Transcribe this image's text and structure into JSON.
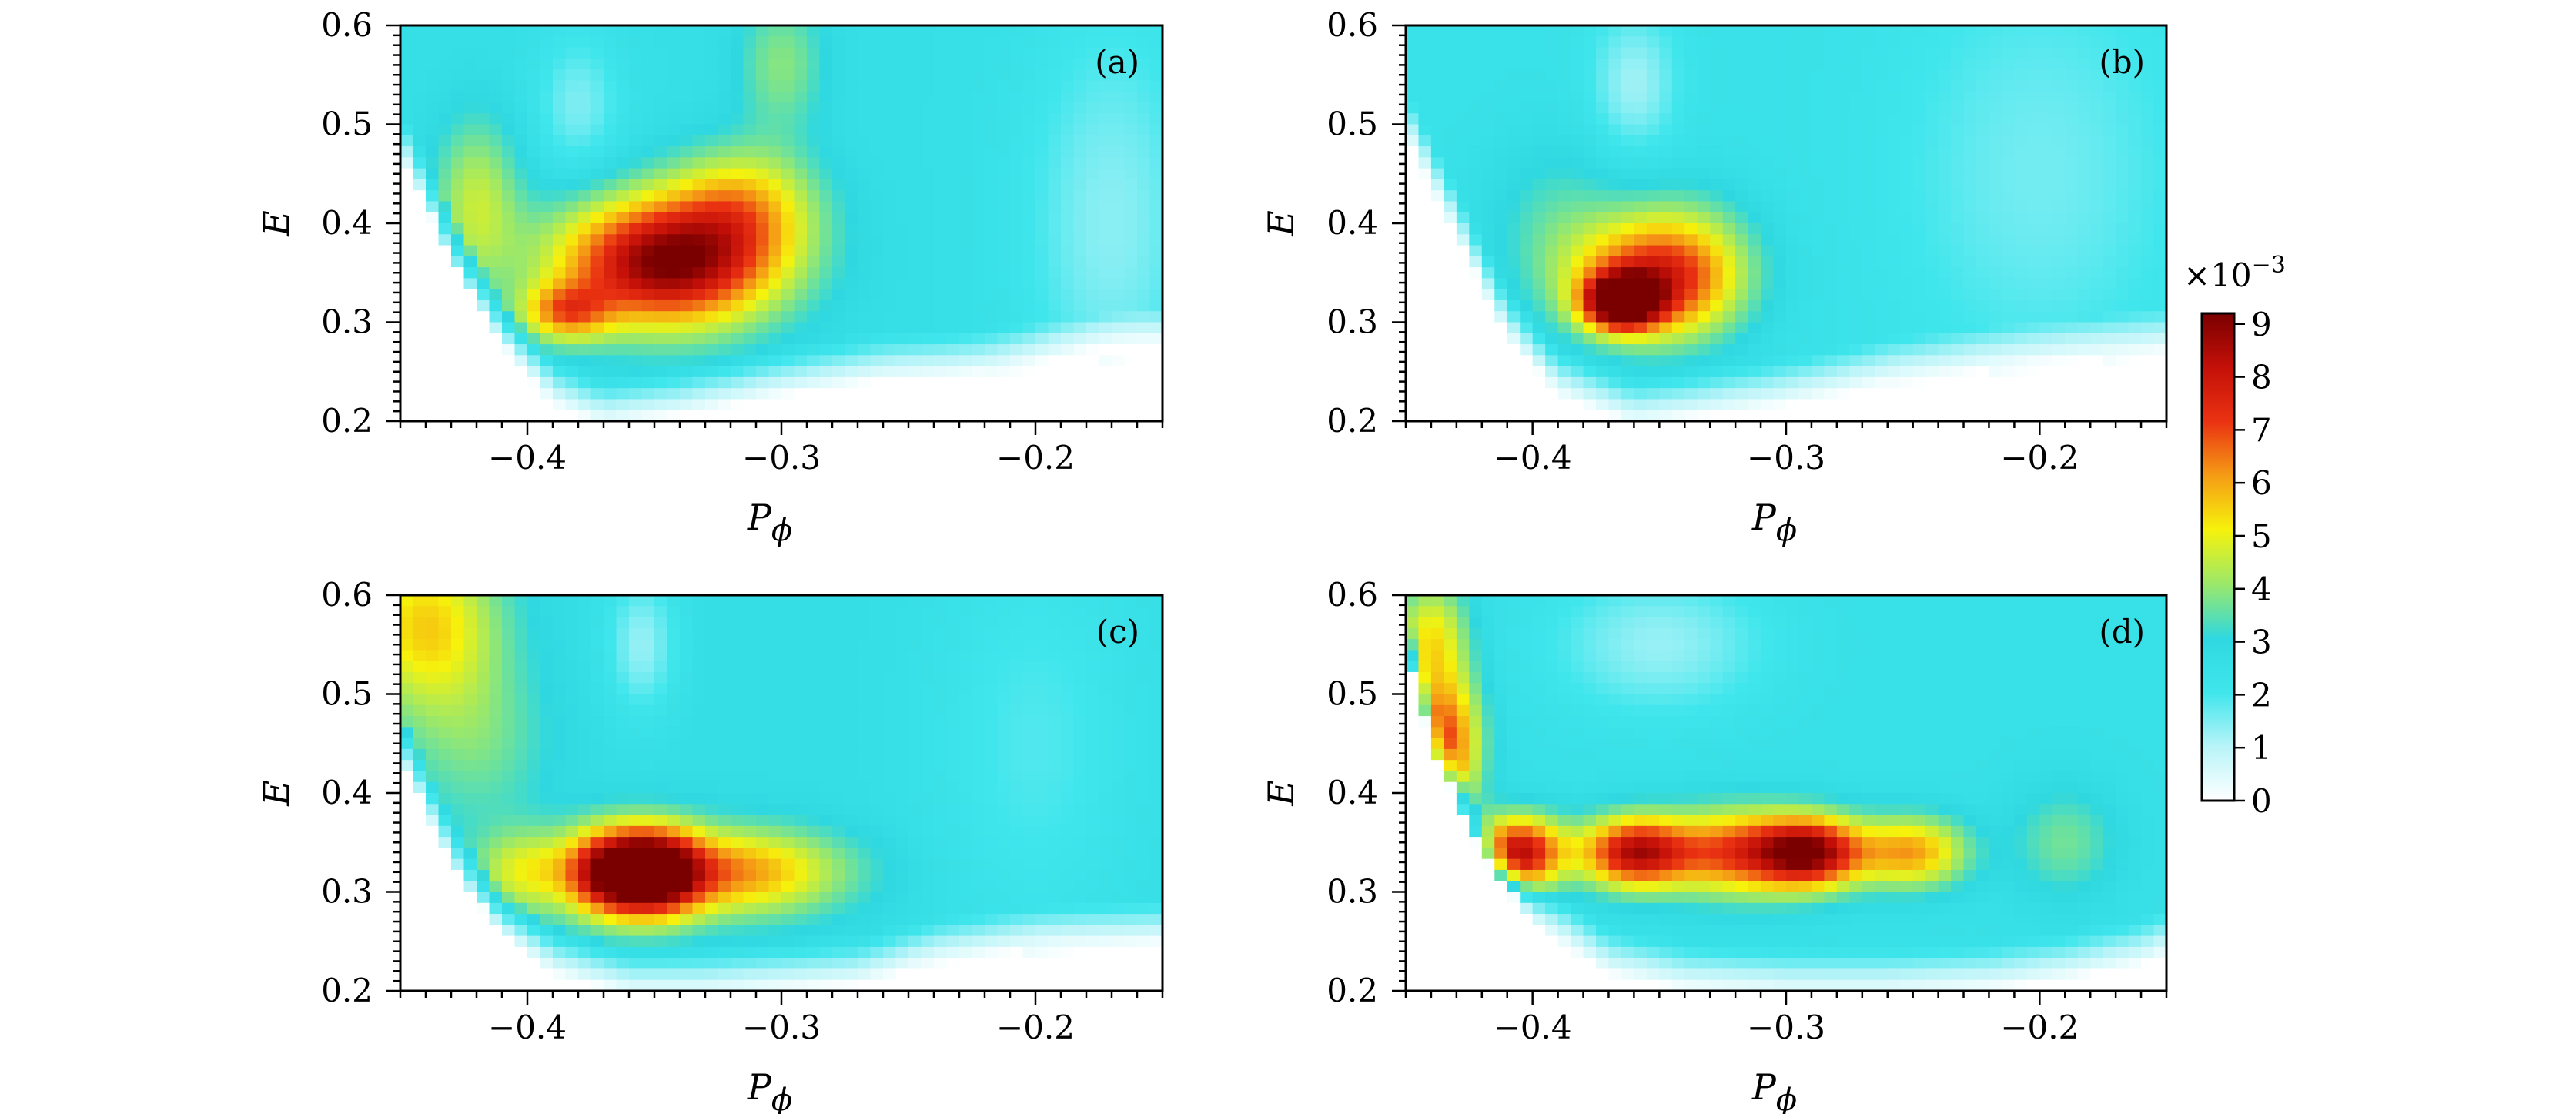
{
  "chart_data": [
    {
      "type": "heatmap",
      "panel_label": "(a)",
      "xlabel": "P",
      "xlabel_sub": "ϕ",
      "ylabel": "E",
      "xlim": [
        -0.45,
        -0.15
      ],
      "ylim": [
        0.2,
        0.6
      ],
      "x_ticks": [
        -0.4,
        -0.3,
        -0.2
      ],
      "x_tick_labels": [
        "−0.4",
        "−0.3",
        "−0.2"
      ],
      "y_ticks": [
        0.2,
        0.3,
        0.4,
        0.5,
        0.6
      ],
      "y_tick_labels": [
        "0.2",
        "0.3",
        "0.4",
        "0.5",
        "0.6"
      ],
      "floor": 2.6,
      "boundary": [
        [
          -0.45,
          0.48
        ],
        [
          -0.43,
          0.38
        ],
        [
          -0.41,
          0.29
        ],
        [
          -0.39,
          0.23
        ],
        [
          -0.37,
          0.21
        ],
        [
          -0.34,
          0.22
        ],
        [
          -0.3,
          0.24
        ],
        [
          -0.26,
          0.255
        ],
        [
          -0.22,
          0.26
        ],
        [
          -0.18,
          0.27
        ],
        [
          -0.15,
          0.28
        ]
      ],
      "peaks": [
        {
          "x": -0.345,
          "y": 0.36,
          "amp": 6.6,
          "sx": 0.03,
          "sy": 0.045
        },
        {
          "x": -0.385,
          "y": 0.31,
          "amp": 3.2,
          "sx": 0.012,
          "sy": 0.02
        },
        {
          "x": -0.315,
          "y": 0.42,
          "amp": 2.5,
          "sx": 0.02,
          "sy": 0.04
        },
        {
          "x": -0.42,
          "y": 0.42,
          "amp": 1.9,
          "sx": 0.012,
          "sy": 0.06
        },
        {
          "x": -0.3,
          "y": 0.56,
          "amp": 1.3,
          "sx": 0.012,
          "sy": 0.05
        },
        {
          "x": -0.38,
          "y": 0.52,
          "amp": -1.1,
          "sx": 0.012,
          "sy": 0.05
        },
        {
          "x": -0.17,
          "y": 0.4,
          "amp": -1.2,
          "sx": 0.025,
          "sy": 0.15
        }
      ]
    },
    {
      "type": "heatmap",
      "panel_label": "(b)",
      "xlabel": "P",
      "xlabel_sub": "ϕ",
      "ylabel": "E",
      "xlim": [
        -0.45,
        -0.15
      ],
      "ylim": [
        0.2,
        0.6
      ],
      "x_ticks": [
        -0.4,
        -0.3,
        -0.2
      ],
      "x_tick_labels": [
        "−0.4",
        "−0.3",
        "−0.2"
      ],
      "y_ticks": [
        0.2,
        0.3,
        0.4,
        0.5,
        0.6
      ],
      "y_tick_labels": [
        "0.2",
        "0.3",
        "0.4",
        "0.5",
        "0.6"
      ],
      "floor": 2.4,
      "boundary": [
        [
          -0.45,
          0.5
        ],
        [
          -0.43,
          0.4
        ],
        [
          -0.41,
          0.3
        ],
        [
          -0.39,
          0.24
        ],
        [
          -0.36,
          0.21
        ],
        [
          -0.33,
          0.22
        ],
        [
          -0.3,
          0.23
        ],
        [
          -0.26,
          0.25
        ],
        [
          -0.22,
          0.26
        ],
        [
          -0.18,
          0.27
        ],
        [
          -0.15,
          0.28
        ]
      ],
      "peaks": [
        {
          "x": -0.365,
          "y": 0.32,
          "amp": 6.8,
          "sx": 0.01,
          "sy": 0.018
        },
        {
          "x": -0.355,
          "y": 0.34,
          "amp": 4.0,
          "sx": 0.022,
          "sy": 0.04
        },
        {
          "x": -0.34,
          "y": 0.36,
          "amp": 2.0,
          "sx": 0.02,
          "sy": 0.05
        },
        {
          "x": -0.39,
          "y": 0.4,
          "amp": 1.0,
          "sx": 0.02,
          "sy": 0.06
        },
        {
          "x": -0.36,
          "y": 0.54,
          "amp": -1.2,
          "sx": 0.012,
          "sy": 0.05
        },
        {
          "x": -0.2,
          "y": 0.45,
          "amp": -0.8,
          "sx": 0.04,
          "sy": 0.15
        }
      ]
    },
    {
      "type": "heatmap",
      "panel_label": "(c)",
      "xlabel": "P",
      "xlabel_sub": "ϕ",
      "ylabel": "E",
      "xlim": [
        -0.45,
        -0.15
      ],
      "ylim": [
        0.2,
        0.6
      ],
      "x_ticks": [
        -0.4,
        -0.3,
        -0.2
      ],
      "x_tick_labels": [
        "−0.4",
        "−0.3",
        "−0.2"
      ],
      "y_ticks": [
        0.2,
        0.3,
        0.4,
        0.5,
        0.6
      ],
      "y_tick_labels": [
        "0.2",
        "0.3",
        "0.4",
        "0.5",
        "0.6"
      ],
      "floor": 2.7,
      "boundary": [
        [
          -0.45,
          0.45
        ],
        [
          -0.43,
          0.34
        ],
        [
          -0.41,
          0.27
        ],
        [
          -0.39,
          0.23
        ],
        [
          -0.36,
          0.21
        ],
        [
          -0.33,
          0.21
        ],
        [
          -0.3,
          0.215
        ],
        [
          -0.27,
          0.22
        ],
        [
          -0.24,
          0.24
        ],
        [
          -0.2,
          0.25
        ],
        [
          -0.15,
          0.26
        ]
      ],
      "peaks": [
        {
          "x": -0.367,
          "y": 0.32,
          "amp": 5.8,
          "sx": 0.012,
          "sy": 0.03
        },
        {
          "x": -0.348,
          "y": 0.32,
          "amp": 5.8,
          "sx": 0.012,
          "sy": 0.03
        },
        {
          "x": -0.32,
          "y": 0.32,
          "amp": 3.6,
          "sx": 0.03,
          "sy": 0.03
        },
        {
          "x": -0.4,
          "y": 0.32,
          "amp": 2.2,
          "sx": 0.015,
          "sy": 0.03
        },
        {
          "x": -0.44,
          "y": 0.57,
          "amp": 2.8,
          "sx": 0.02,
          "sy": 0.06
        },
        {
          "x": -0.42,
          "y": 0.45,
          "amp": 1.0,
          "sx": 0.02,
          "sy": 0.06
        },
        {
          "x": -0.355,
          "y": 0.55,
          "amp": -1.4,
          "sx": 0.01,
          "sy": 0.05
        },
        {
          "x": -0.2,
          "y": 0.45,
          "amp": -0.8,
          "sx": 0.03,
          "sy": 0.15
        }
      ]
    },
    {
      "type": "heatmap",
      "panel_label": "(d)",
      "xlabel": "P",
      "xlabel_sub": "ϕ",
      "ylabel": "E",
      "xlim": [
        -0.45,
        -0.15
      ],
      "ylim": [
        0.2,
        0.6
      ],
      "x_ticks": [
        -0.4,
        -0.3,
        -0.2
      ],
      "x_tick_labels": [
        "−0.4",
        "−0.3",
        "−0.2"
      ],
      "y_ticks": [
        0.2,
        0.3,
        0.4,
        0.5,
        0.6
      ],
      "y_tick_labels": [
        "0.2",
        "0.3",
        "0.4",
        "0.5",
        "0.6"
      ],
      "floor": 2.5,
      "boundary": [
        [
          -0.45,
          0.56
        ],
        [
          -0.44,
          0.46
        ],
        [
          -0.42,
          0.35
        ],
        [
          -0.4,
          0.28
        ],
        [
          -0.37,
          0.23
        ],
        [
          -0.34,
          0.215
        ],
        [
          -0.3,
          0.21
        ],
        [
          -0.26,
          0.21
        ],
        [
          -0.22,
          0.215
        ],
        [
          -0.19,
          0.225
        ],
        [
          -0.16,
          0.24
        ],
        [
          -0.15,
          0.25
        ]
      ],
      "peaks": [
        {
          "x": -0.405,
          "y": 0.34,
          "amp": 5.8,
          "sx": 0.012,
          "sy": 0.025
        },
        {
          "x": -0.36,
          "y": 0.34,
          "amp": 5.6,
          "sx": 0.015,
          "sy": 0.025
        },
        {
          "x": -0.29,
          "y": 0.34,
          "amp": 5.8,
          "sx": 0.015,
          "sy": 0.025
        },
        {
          "x": -0.32,
          "y": 0.34,
          "amp": 4.2,
          "sx": 0.02,
          "sy": 0.03
        },
        {
          "x": -0.25,
          "y": 0.34,
          "amp": 3.5,
          "sx": 0.015,
          "sy": 0.025
        },
        {
          "x": -0.435,
          "y": 0.45,
          "amp": 4.6,
          "sx": 0.01,
          "sy": 0.05
        },
        {
          "x": -0.44,
          "y": 0.56,
          "amp": 2.5,
          "sx": 0.01,
          "sy": 0.04
        },
        {
          "x": -0.19,
          "y": 0.35,
          "amp": 1.2,
          "sx": 0.015,
          "sy": 0.04
        },
        {
          "x": -0.35,
          "y": 0.55,
          "amp": -1.2,
          "sx": 0.03,
          "sy": 0.05
        }
      ]
    }
  ],
  "colorbar": {
    "exponent_label": "×10",
    "exponent_power": "−3",
    "range": [
      0,
      9.2
    ],
    "ticks": [
      0,
      1,
      2,
      3,
      4,
      5,
      6,
      7,
      8,
      9
    ],
    "tick_labels": [
      "0",
      "1",
      "2",
      "3",
      "4",
      "5",
      "6",
      "7",
      "8",
      "9"
    ],
    "colormap": [
      "#ffffff",
      "#b8f4f8",
      "#3fe6ec",
      "#2fd8e0",
      "#9be86a",
      "#f6f20c",
      "#f59c15",
      "#ea3212",
      "#c41008",
      "#7a0000"
    ]
  }
}
